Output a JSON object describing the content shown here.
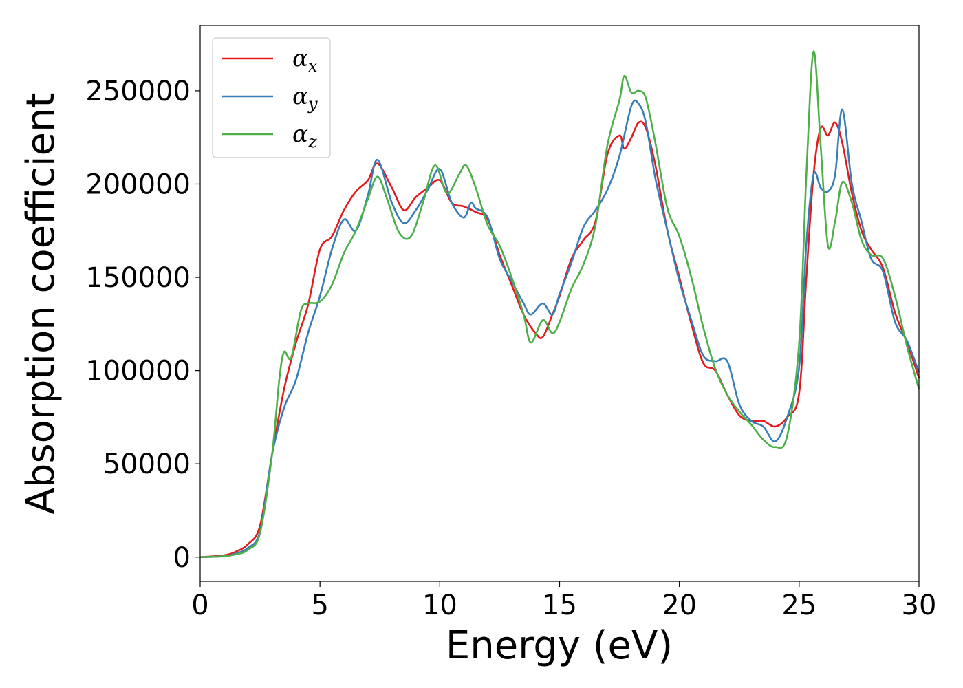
{
  "chart_data": {
    "type": "line",
    "xlabel": "Energy (eV)",
    "ylabel": "Absorption coefficient",
    "xlim": [
      0,
      30
    ],
    "ylim": [
      -13000,
      285000
    ],
    "xticks": [
      "0",
      "5",
      "10",
      "15",
      "20",
      "25",
      "30"
    ],
    "yticks": [
      "0",
      "50000",
      "100000",
      "150000",
      "200000",
      "250000"
    ],
    "grid": false,
    "legend_position": "top-left",
    "series": [
      {
        "name": "α",
        "subscript": "x",
        "color": "#e41a1c",
        "x": [
          0,
          1,
          1.5,
          2,
          2.5,
          3,
          3.5,
          4,
          4.5,
          5,
          5.5,
          6,
          6.5,
          7,
          7.4,
          8,
          8.5,
          9,
          9.5,
          10,
          10.5,
          11,
          11.5,
          12,
          12.5,
          13,
          13.5,
          14,
          14.3,
          14.7,
          15,
          15.5,
          16,
          16.5,
          17,
          17.5,
          17.7,
          18,
          18.3,
          18.6,
          19,
          19.5,
          20,
          20.5,
          21,
          21.5,
          22,
          22.5,
          23,
          23.5,
          24,
          24.5,
          25,
          25.3,
          25.6,
          25.9,
          26.2,
          26.5,
          26.8,
          27.2,
          27.6,
          28,
          28.5,
          29,
          29.5,
          30
        ],
        "y": [
          0,
          1000,
          3000,
          7000,
          17000,
          55000,
          90000,
          115000,
          135000,
          165000,
          172000,
          186000,
          196000,
          202000,
          211000,
          198000,
          186000,
          193000,
          198000,
          202000,
          190000,
          188000,
          185000,
          181000,
          162000,
          146000,
          130000,
          120000,
          118000,
          130000,
          140000,
          160000,
          170000,
          180000,
          216000,
          226000,
          219000,
          225000,
          233000,
          230000,
          210000,
          175000,
          150000,
          125000,
          104000,
          100000,
          87000,
          76000,
          73000,
          73000,
          70000,
          75000,
          88000,
          150000,
          205000,
          230000,
          226000,
          233000,
          222000,
          195000,
          175000,
          165000,
          155000,
          131000,
          115000,
          96000
        ]
      },
      {
        "name": "α",
        "subscript": "y",
        "color": "#377eb8",
        "x": [
          0,
          1,
          1.5,
          2,
          2.5,
          3,
          3.5,
          4,
          4.5,
          5,
          5.5,
          6,
          6.5,
          7,
          7.4,
          8,
          8.5,
          9,
          9.5,
          10,
          10.5,
          11,
          11.3,
          11.5,
          12,
          12.5,
          13,
          13.5,
          13.8,
          14.3,
          14.7,
          15,
          15.5,
          16,
          16.5,
          17,
          17.5,
          18,
          18.3,
          18.6,
          19,
          19.5,
          20,
          20.5,
          21,
          21.5,
          22,
          22.5,
          23,
          23.5,
          24,
          24.5,
          25,
          25.3,
          25.6,
          25.9,
          26.2,
          26.5,
          26.8,
          27.2,
          27.6,
          28,
          28.5,
          29,
          29.5,
          30
        ],
        "y": [
          0,
          500,
          2000,
          5000,
          14000,
          55000,
          80000,
          95000,
          120000,
          140000,
          165000,
          181000,
          175000,
          194000,
          213000,
          190000,
          179000,
          186000,
          197000,
          208000,
          190000,
          182000,
          190000,
          187000,
          182000,
          160000,
          148000,
          136000,
          130000,
          136000,
          130000,
          141000,
          158000,
          177000,
          186000,
          197000,
          215000,
          242000,
          243000,
          233000,
          203000,
          175000,
          148000,
          127000,
          108000,
          105000,
          105000,
          82000,
          73000,
          70000,
          62000,
          75000,
          102000,
          168000,
          205000,
          198000,
          196000,
          205000,
          240000,
          200000,
          180000,
          160000,
          153000,
          126000,
          116000,
          99000
        ]
      },
      {
        "name": "α",
        "subscript": "z",
        "color": "#4daf4a",
        "x": [
          0,
          1,
          1.5,
          2,
          2.5,
          3,
          3.3,
          3.5,
          3.8,
          4.2,
          4.5,
          5,
          5.5,
          6,
          6.5,
          7,
          7.4,
          7.8,
          8.3,
          8.8,
          9.3,
          9.8,
          10.3,
          10.8,
          11.1,
          11.5,
          12,
          12.5,
          13,
          13.5,
          13.8,
          14.3,
          14.7,
          15,
          15.5,
          16,
          16.5,
          17,
          17.5,
          17.7,
          18,
          18.3,
          18.6,
          19,
          19.5,
          20,
          20.5,
          21,
          21.5,
          22,
          22.5,
          23,
          23.5,
          24,
          24.5,
          25,
          25.3,
          25.6,
          25.9,
          26.2,
          26.5,
          26.8,
          27.2,
          27.6,
          28,
          28.5,
          29,
          29.5,
          30
        ],
        "y": [
          0,
          500,
          1500,
          4000,
          13000,
          55000,
          95000,
          110000,
          107000,
          132000,
          136000,
          137000,
          146000,
          163000,
          175000,
          192000,
          204000,
          192000,
          174000,
          172000,
          190000,
          210000,
          195000,
          205000,
          210000,
          198000,
          178000,
          167000,
          150000,
          130000,
          115000,
          127000,
          120000,
          126000,
          144000,
          157000,
          178000,
          221000,
          245000,
          258000,
          249000,
          250000,
          246000,
          222000,
          187000,
          172000,
          150000,
          123000,
          101000,
          87000,
          78000,
          71000,
          63000,
          59000,
          65000,
          115000,
          205000,
          271000,
          220000,
          167000,
          180000,
          201000,
          190000,
          170000,
          162000,
          160000,
          140000,
          113000,
          90000
        ]
      }
    ]
  }
}
